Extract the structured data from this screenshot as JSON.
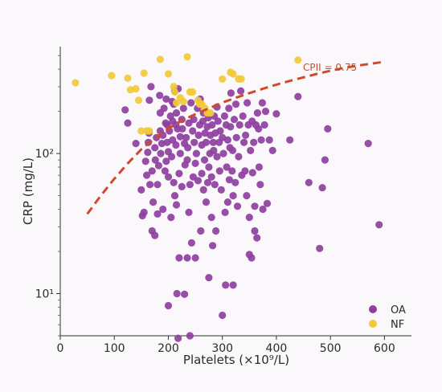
{
  "chart_data": {
    "type": "scatter",
    "title": "",
    "xlabel": "Platelets (×10⁹/L)",
    "ylabel": "CRP (mg/L)",
    "xlim": [
      0,
      650
    ],
    "ylim": [
      5,
      580
    ],
    "yscale": "log",
    "x_ticks": [
      0,
      100,
      200,
      300,
      400,
      500,
      600
    ],
    "y_ticks": [
      10,
      100
    ],
    "x_tick_labels": [
      "0",
      "100",
      "200",
      "300",
      "400",
      "500",
      "600"
    ],
    "y_tick_labels": [
      "10¹",
      "10²"
    ],
    "grid": false,
    "legend_position": "bottom-right",
    "annotation": "CPII = 0.75",
    "curve": {
      "name": "CPII = 0.75",
      "color": "#d04a2a",
      "x": [
        50,
        75,
        100,
        125,
        150,
        175,
        200,
        225,
        250,
        275,
        300,
        325,
        350,
        375,
        400,
        425,
        450,
        475,
        500,
        525,
        550,
        575,
        600
      ],
      "y": [
        37,
        50,
        66,
        85,
        107,
        129,
        151,
        172,
        191,
        210,
        231,
        250,
        270,
        290,
        310,
        330,
        350,
        370,
        390,
        408,
        424,
        438,
        452
      ]
    },
    "series": [
      {
        "name": "OA",
        "color": "#8e3fa0",
        "points": [
          [
            120,
            205
          ],
          [
            125,
            165
          ],
          [
            140,
            118
          ],
          [
            150,
            55
          ],
          [
            152,
            36
          ],
          [
            155,
            38
          ],
          [
            158,
            88
          ],
          [
            160,
            70
          ],
          [
            162,
            102
          ],
          [
            163,
            120
          ],
          [
            164,
            140
          ],
          [
            165,
            240
          ],
          [
            166,
            60
          ],
          [
            168,
            300
          ],
          [
            170,
            28
          ],
          [
            170,
            75
          ],
          [
            172,
            45
          ],
          [
            175,
            26
          ],
          [
            175,
            110
          ],
          [
            176,
            90
          ],
          [
            178,
            130
          ],
          [
            180,
            37
          ],
          [
            180,
            60
          ],
          [
            182,
            82
          ],
          [
            184,
            260
          ],
          [
            185,
            145
          ],
          [
            185,
            195
          ],
          [
            186,
            100
          ],
          [
            188,
            118
          ],
          [
            190,
            40
          ],
          [
            190,
            135
          ],
          [
            192,
            210
          ],
          [
            194,
            75
          ],
          [
            195,
            165
          ],
          [
            196,
            88
          ],
          [
            196,
            245
          ],
          [
            198,
            120
          ],
          [
            198,
            160
          ],
          [
            200,
            8.2
          ],
          [
            200,
            68
          ],
          [
            200,
            103
          ],
          [
            202,
            145
          ],
          [
            204,
            185
          ],
          [
            205,
            35
          ],
          [
            206,
            95
          ],
          [
            207,
            235
          ],
          [
            208,
            125
          ],
          [
            208,
            170
          ],
          [
            210,
            62
          ],
          [
            210,
            225
          ],
          [
            212,
            50
          ],
          [
            212,
            280
          ],
          [
            214,
            115
          ],
          [
            214,
            160
          ],
          [
            215,
            43
          ],
          [
            215,
            195
          ],
          [
            216,
            10
          ],
          [
            217,
            150
          ],
          [
            218,
            290
          ],
          [
            218,
            4.8
          ],
          [
            220,
            18
          ],
          [
            220,
            72
          ],
          [
            222,
            100
          ],
          [
            222,
            132
          ],
          [
            225,
            58
          ],
          [
            225,
            175
          ],
          [
            226,
            150
          ],
          [
            228,
            210
          ],
          [
            230,
            9.9
          ],
          [
            230,
            118
          ],
          [
            231,
            83
          ],
          [
            233,
            130
          ],
          [
            235,
            18
          ],
          [
            235,
            90
          ],
          [
            236,
            110
          ],
          [
            238,
            38
          ],
          [
            238,
            165
          ],
          [
            240,
            60
          ],
          [
            240,
            5
          ],
          [
            242,
            230
          ],
          [
            243,
            23
          ],
          [
            245,
            145
          ],
          [
            246,
            68
          ],
          [
            247,
            175
          ],
          [
            248,
            120
          ],
          [
            250,
            18
          ],
          [
            250,
            85
          ],
          [
            252,
            100
          ],
          [
            254,
            210
          ],
          [
            255,
            64
          ],
          [
            256,
            135
          ],
          [
            258,
            160
          ],
          [
            259,
            245
          ],
          [
            260,
            28
          ],
          [
            262,
            72
          ],
          [
            262,
            115
          ],
          [
            264,
            170
          ],
          [
            265,
            55
          ],
          [
            265,
            195
          ],
          [
            267,
            90
          ],
          [
            268,
            140
          ],
          [
            270,
            45
          ],
          [
            270,
            120
          ],
          [
            272,
            155
          ],
          [
            273,
            62
          ],
          [
            274,
            180
          ],
          [
            275,
            13
          ],
          [
            275,
            80
          ],
          [
            277,
            100
          ],
          [
            278,
            135
          ],
          [
            280,
            35
          ],
          [
            280,
            68
          ],
          [
            281,
            160
          ],
          [
            282,
            22
          ],
          [
            283,
            120
          ],
          [
            284,
            105
          ],
          [
            285,
            185
          ],
          [
            286,
            60
          ],
          [
            287,
            140
          ],
          [
            288,
            28
          ],
          [
            290,
            95
          ],
          [
            290,
            215
          ],
          [
            292,
            170
          ],
          [
            294,
            120
          ],
          [
            295,
            75
          ],
          [
            296,
            145
          ],
          [
            298,
            55
          ],
          [
            300,
            7
          ],
          [
            300,
            130
          ],
          [
            302,
            100
          ],
          [
            304,
            185
          ],
          [
            305,
            38
          ],
          [
            306,
            11.5
          ],
          [
            307,
            160
          ],
          [
            308,
            80
          ],
          [
            310,
            45
          ],
          [
            310,
            125
          ],
          [
            312,
            210
          ],
          [
            313,
            65
          ],
          [
            314,
            110
          ],
          [
            315,
            155
          ],
          [
            316,
            270
          ],
          [
            318,
            75
          ],
          [
            319,
            105
          ],
          [
            320,
            11.5
          ],
          [
            320,
            50
          ],
          [
            322,
            175
          ],
          [
            324,
            62
          ],
          [
            325,
            225
          ],
          [
            326,
            130
          ],
          [
            328,
            42
          ],
          [
            330,
            95
          ],
          [
            332,
            160
          ],
          [
            334,
            280
          ],
          [
            336,
            70
          ],
          [
            338,
            185
          ],
          [
            340,
            120
          ],
          [
            342,
            75
          ],
          [
            343,
            135
          ],
          [
            345,
            50
          ],
          [
            346,
            230
          ],
          [
            348,
            160
          ],
          [
            350,
            35
          ],
          [
            350,
            19
          ],
          [
            352,
            105
          ],
          [
            354,
            18
          ],
          [
            355,
            170
          ],
          [
            356,
            73
          ],
          [
            358,
            120
          ],
          [
            360,
            28
          ],
          [
            360,
            42
          ],
          [
            362,
            160
          ],
          [
            364,
            25
          ],
          [
            365,
            195
          ],
          [
            367,
            150
          ],
          [
            368,
            80
          ],
          [
            370,
            60
          ],
          [
            372,
            125
          ],
          [
            374,
            230
          ],
          [
            375,
            40
          ],
          [
            378,
            160
          ],
          [
            380,
            200
          ],
          [
            383,
            44
          ],
          [
            387,
            125
          ],
          [
            393,
            105
          ],
          [
            400,
            192
          ],
          [
            425,
            125
          ],
          [
            440,
            255
          ],
          [
            460,
            62
          ],
          [
            480,
            21
          ],
          [
            485,
            57
          ],
          [
            490,
            90
          ],
          [
            495,
            150
          ],
          [
            570,
            118
          ],
          [
            590,
            31
          ]
        ]
      },
      {
        "name": "NF",
        "color": "#f2c93a",
        "points": [
          [
            28,
            320
          ],
          [
            95,
            360
          ],
          [
            125,
            345
          ],
          [
            130,
            285
          ],
          [
            140,
            290
          ],
          [
            145,
            240
          ],
          [
            150,
            145
          ],
          [
            155,
            375
          ],
          [
            160,
            145
          ],
          [
            165,
            145
          ],
          [
            185,
            470
          ],
          [
            200,
            370
          ],
          [
            210,
            300
          ],
          [
            212,
            275
          ],
          [
            215,
            230
          ],
          [
            222,
            250
          ],
          [
            228,
            235
          ],
          [
            235,
            490
          ],
          [
            240,
            275
          ],
          [
            245,
            275
          ],
          [
            255,
            240
          ],
          [
            258,
            225
          ],
          [
            262,
            225
          ],
          [
            268,
            210
          ],
          [
            272,
            195
          ],
          [
            278,
            195
          ],
          [
            300,
            340
          ],
          [
            315,
            380
          ],
          [
            320,
            370
          ],
          [
            330,
            340
          ],
          [
            335,
            340
          ],
          [
            440,
            465
          ]
        ]
      }
    ]
  }
}
